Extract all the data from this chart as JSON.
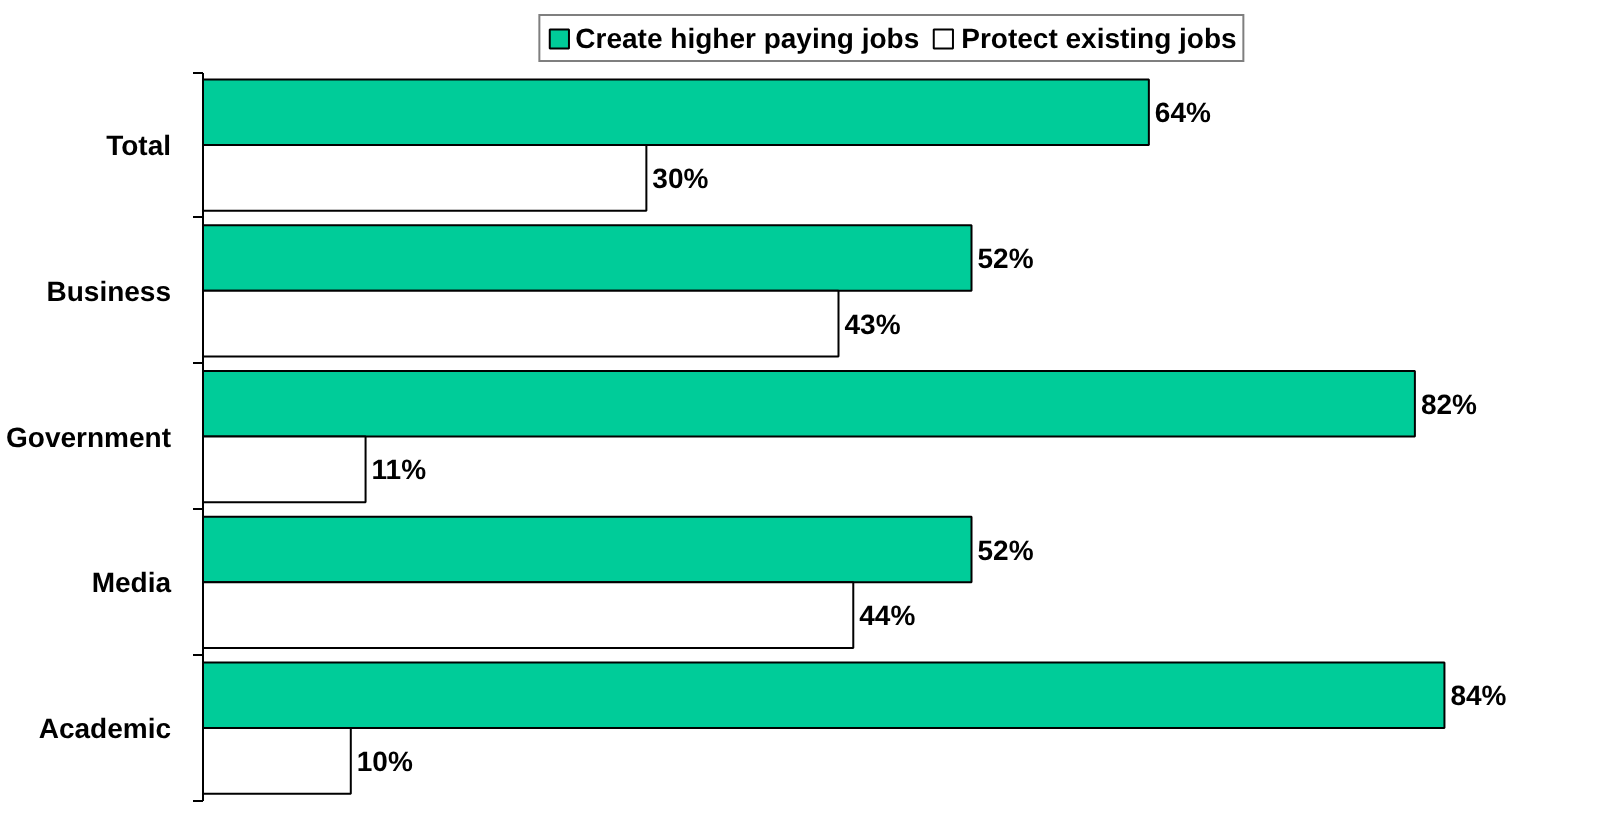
{
  "chart_data": {
    "type": "bar",
    "orientation": "horizontal",
    "categories": [
      "Total",
      "Business",
      "Government",
      "Media",
      "Academic"
    ],
    "series": [
      {
        "name": "Create higher paying jobs",
        "color": "#00cc99",
        "values": [
          64,
          52,
          82,
          52,
          84
        ],
        "value_labels": [
          "64%",
          "52%",
          "82%",
          "52%",
          "84%"
        ]
      },
      {
        "name": "Protect existing jobs",
        "color": "#ffffff",
        "values": [
          30,
          43,
          11,
          44,
          10
        ],
        "value_labels": [
          "30%",
          "43%",
          "11%",
          "44%",
          "10%"
        ]
      }
    ],
    "legend": "top",
    "tick_labels": "y"
  }
}
